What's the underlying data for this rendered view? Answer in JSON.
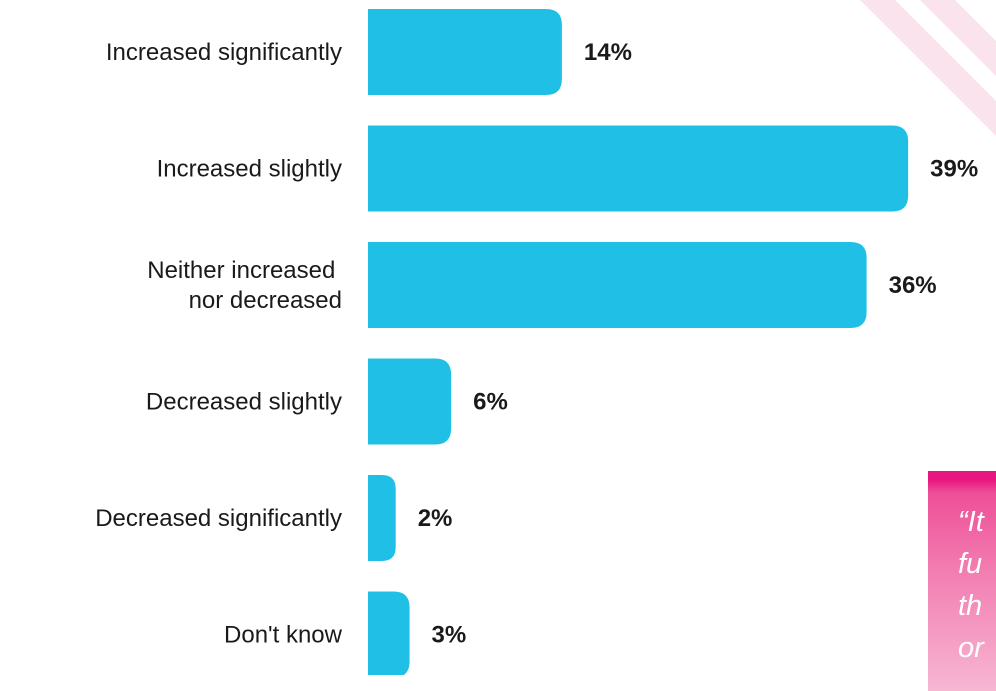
{
  "chart_data": {
    "type": "bar",
    "orientation": "horizontal",
    "categories": [
      "Increased significantly",
      "Increased slightly",
      "Neither increased nor decreased",
      "Decreased slightly",
      "Decreased significantly",
      "Don't know"
    ],
    "category_label_lines": [
      [
        "Increased significantly"
      ],
      [
        "Increased slightly"
      ],
      [
        "Neither increased ",
        "nor decreased"
      ],
      [
        "Decreased slightly"
      ],
      [
        "Decreased significantly"
      ],
      [
        "Don't know"
      ]
    ],
    "values": [
      14,
      39,
      36,
      6,
      2,
      3
    ],
    "value_labels": [
      "14%",
      "39%",
      "36%",
      "6%",
      "2%",
      "3%"
    ],
    "unit": "%",
    "title": "",
    "xlabel": "",
    "ylabel": "",
    "grid": false,
    "legend": "none",
    "bar_color": "#20c0e6"
  },
  "quote": {
    "text": "“It\nfu\nth\nor"
  },
  "colors": {
    "quote_bg_top": "#e8177f",
    "quote_bg_bottom": "#f7b7d3",
    "stripe": "#fbe0ec"
  }
}
